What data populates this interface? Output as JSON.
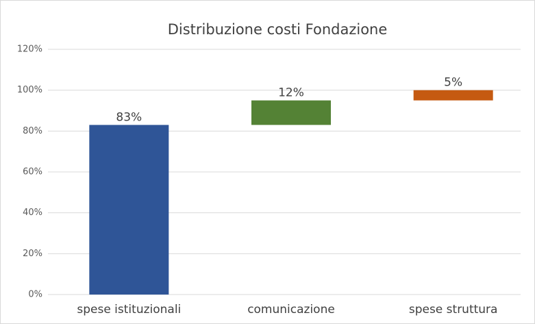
{
  "chart_data": {
    "type": "waterfall",
    "title": "Distribuzione costi Fondazione",
    "categories": [
      "spese istituzionali",
      "comunicazione",
      "spese struttura"
    ],
    "values": [
      83,
      12,
      5
    ],
    "value_labels": [
      "83%",
      "12%",
      "5%"
    ],
    "colors": [
      "#2f5597",
      "#548235",
      "#c55a11"
    ],
    "ylim": [
      0,
      120
    ],
    "yticks": [
      {
        "value": 0,
        "label": "0%"
      },
      {
        "value": 20,
        "label": "20%"
      },
      {
        "value": 40,
        "label": "40%"
      },
      {
        "value": 60,
        "label": "60%"
      },
      {
        "value": 80,
        "label": "80%"
      },
      {
        "value": 100,
        "label": "100%"
      },
      {
        "value": 120,
        "label": "120%"
      }
    ],
    "grid": true
  }
}
